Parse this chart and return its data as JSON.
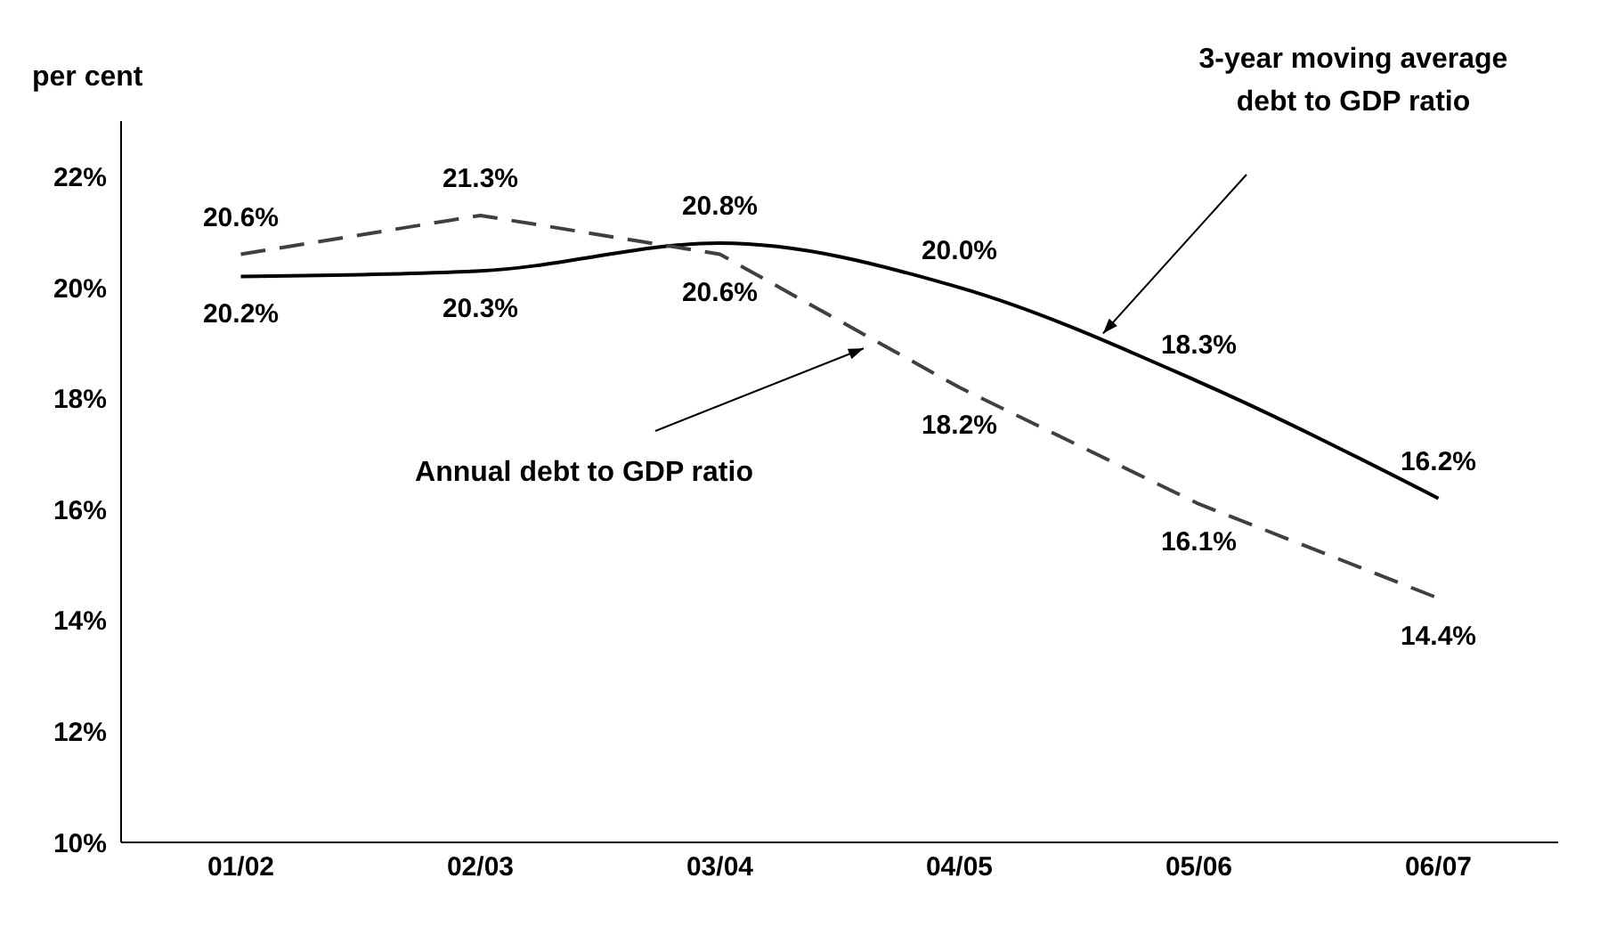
{
  "chart_data": {
    "type": "line",
    "ylabel": "per cent",
    "categories": [
      "01/02",
      "02/03",
      "03/04",
      "04/05",
      "05/06",
      "06/07"
    ],
    "series": [
      {
        "color": "#000000",
        "line_style": "solid",
        "values": [
          20.2,
          20.3,
          20.8,
          20.0,
          18.3,
          16.2
        ],
        "value_labels": [
          "20.2%",
          "20.3%",
          "20.8%",
          "20.0%",
          "18.3%",
          "16.2%"
        ]
      },
      {
        "color": "#404040",
        "line_style": "dashed",
        "values": [
          20.6,
          21.3,
          20.6,
          18.2,
          16.1,
          14.4
        ],
        "value_labels": [
          "20.6%",
          "21.3%",
          "20.6%",
          "18.2%",
          "16.1%",
          "14.4%"
        ]
      }
    ],
    "annotations": [
      "3-year moving average debt to GDP ratio",
      "Annual debt to GDP ratio"
    ],
    "ylim": [
      10,
      23
    ],
    "yticks": [
      {
        "value": 10,
        "label": "10%"
      },
      {
        "value": 12,
        "label": "12%"
      },
      {
        "value": 14,
        "label": "14%"
      },
      {
        "value": 16,
        "label": "16%"
      },
      {
        "value": 18,
        "label": "18%"
      },
      {
        "value": 20,
        "label": "20%"
      },
      {
        "value": 22,
        "label": "22%"
      }
    ],
    "marker": "none"
  }
}
